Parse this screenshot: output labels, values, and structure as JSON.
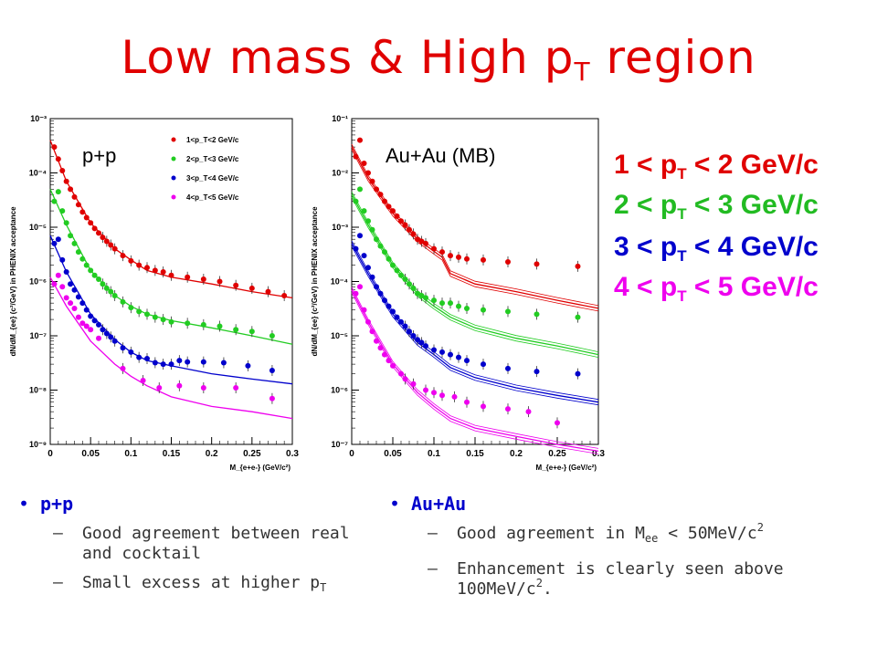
{
  "slide": {
    "title_main": "Low mass & High p",
    "title_sub": "T",
    "title_end": " region"
  },
  "legend_big": [
    {
      "pre": "1 < p",
      "sub": "T",
      "post": " < 2 GeV/c",
      "color": "#e00000"
    },
    {
      "pre": "2 < p",
      "sub": "T",
      "post": " < 3 GeV/c",
      "color": "#22bb22"
    },
    {
      "pre": "3 < p",
      "sub": "T",
      "post": " < 4 GeV/c",
      "color": "#0000cc"
    },
    {
      "pre": "4 < p",
      "sub": "T",
      "post": " < 5 GeV/c",
      "color": "#ee00ee"
    }
  ],
  "bullets": {
    "pp": {
      "head": "p+p",
      "items": [
        {
          "text": "Good agreement between real and cocktail"
        },
        {
          "text": "Small excess at higher p",
          "sub": "T"
        }
      ]
    },
    "auau": {
      "head": "Au+Au",
      "item1": {
        "pre": " Good agreement in M",
        "sub": "ee",
        "mid": " < 50MeV/c",
        "sup": "2"
      },
      "item2": {
        "pre": " Enhancement is clearly seen above 100MeV/c",
        "sup": "2",
        "post": "."
      }
    }
  },
  "chart_data": [
    {
      "type": "scatter",
      "label": "p+p",
      "xlabel": "M_{e+e-} (GeV/c²)",
      "ylabel": "dN/dM_{ee} (c²/GeV) in PHENIX acceptance",
      "xlim": [
        0,
        0.3
      ],
      "ylim": [
        1e-09,
        0.001
      ],
      "y_scale": "log",
      "x_ticks": [
        "0",
        "0.05",
        "0.1",
        "0.15",
        "0.2",
        "0.25",
        "0.3"
      ],
      "y_ticks": [
        "10⁻⁹",
        "10⁻⁸",
        "10⁻⁷",
        "10⁻⁶",
        "10⁻⁵",
        "10⁻⁴",
        "10⁻³"
      ],
      "legend": [
        "1<p_T<2 GeV/c",
        "2<p_T<3 GeV/c",
        "3<p_T<4 GeV/c",
        "4<p_T<5 GeV/c"
      ],
      "series": [
        {
          "color": "#e00000",
          "x": [
            0.005,
            0.01,
            0.015,
            0.02,
            0.025,
            0.03,
            0.035,
            0.04,
            0.045,
            0.05,
            0.055,
            0.06,
            0.065,
            0.07,
            0.075,
            0.08,
            0.09,
            0.1,
            0.11,
            0.12,
            0.13,
            0.14,
            0.15,
            0.17,
            0.19,
            0.21,
            0.23,
            0.25,
            0.27,
            0.29
          ],
          "y": [
            0.0003,
            0.00018,
            0.00011,
            7e-05,
            5e-05,
            3.6e-05,
            2.6e-05,
            1.9e-05,
            1.5e-05,
            1.2e-05,
            9.5e-06,
            7.8e-06,
            6.5e-06,
            5.5e-06,
            4.7e-06,
            4e-06,
            3e-06,
            2.4e-06,
            2e-06,
            1.8e-06,
            1.6e-06,
            1.5e-06,
            1.3e-06,
            1.2e-06,
            1.1e-06,
            1e-06,
            8.5e-07,
            7.5e-07,
            6.5e-07,
            5.5e-07
          ],
          "curve": [
            [
              0,
              0.0004
            ],
            [
              0.02,
              7e-05
            ],
            [
              0.05,
              1.2e-05
            ],
            [
              0.08,
              4e-06
            ],
            [
              0.1,
              2.5e-06
            ],
            [
              0.12,
              1.6e-06
            ],
            [
              0.15,
              1.2e-06
            ],
            [
              0.2,
              9e-07
            ],
            [
              0.25,
              6.5e-07
            ],
            [
              0.3,
              5e-07
            ]
          ]
        },
        {
          "color": "#22cc22",
          "x": [
            0.005,
            0.01,
            0.015,
            0.02,
            0.025,
            0.03,
            0.035,
            0.04,
            0.045,
            0.05,
            0.055,
            0.06,
            0.065,
            0.07,
            0.075,
            0.08,
            0.09,
            0.1,
            0.11,
            0.12,
            0.13,
            0.14,
            0.15,
            0.17,
            0.19,
            0.21,
            0.23,
            0.25,
            0.275
          ],
          "y": [
            3e-05,
            4.5e-05,
            2e-05,
            1.2e-05,
            7e-06,
            5e-06,
            3.5e-06,
            2.6e-06,
            2e-06,
            1.6e-06,
            1.3e-06,
            1.1e-06,
            9e-07,
            7.5e-07,
            6.5e-07,
            5.5e-07,
            4.2e-07,
            3.3e-07,
            2.8e-07,
            2.5e-07,
            2.2e-07,
            2e-07,
            1.8e-07,
            1.7e-07,
            1.6e-07,
            1.5e-07,
            1.3e-07,
            1.2e-07,
            1e-07
          ],
          "curve": [
            [
              0,
              5e-05
            ],
            [
              0.02,
              1.1e-05
            ],
            [
              0.05,
              1.6e-06
            ],
            [
              0.08,
              5.5e-07
            ],
            [
              0.1,
              3.5e-07
            ],
            [
              0.12,
              2.5e-07
            ],
            [
              0.15,
              1.9e-07
            ],
            [
              0.2,
              1.4e-07
            ],
            [
              0.25,
              1e-07
            ],
            [
              0.3,
              7e-08
            ]
          ]
        },
        {
          "color": "#0000cc",
          "x": [
            0.005,
            0.01,
            0.015,
            0.02,
            0.025,
            0.03,
            0.035,
            0.04,
            0.045,
            0.05,
            0.055,
            0.06,
            0.065,
            0.07,
            0.075,
            0.08,
            0.09,
            0.1,
            0.11,
            0.12,
            0.13,
            0.14,
            0.15,
            0.16,
            0.17,
            0.19,
            0.215,
            0.245,
            0.275
          ],
          "y": [
            5e-06,
            6e-06,
            2.5e-06,
            1.5e-06,
            9e-07,
            7e-07,
            5.2e-07,
            4e-07,
            3e-07,
            2.3e-07,
            1.9e-07,
            1.6e-07,
            1.3e-07,
            1.1e-07,
            9.5e-08,
            8e-08,
            6e-08,
            5e-08,
            4e-08,
            3.8e-08,
            3.2e-08,
            3e-08,
            3e-08,
            3.5e-08,
            3.3e-08,
            3.3e-08,
            3.2e-08,
            2.8e-08,
            2.3e-08
          ],
          "curve": [
            [
              0,
              7e-06
            ],
            [
              0.02,
              1.5e-06
            ],
            [
              0.05,
              2.5e-07
            ],
            [
              0.08,
              8.5e-08
            ],
            [
              0.1,
              5e-08
            ],
            [
              0.12,
              3.5e-08
            ],
            [
              0.15,
              2.8e-08
            ],
            [
              0.2,
              2e-08
            ],
            [
              0.25,
              1.6e-08
            ],
            [
              0.3,
              1.3e-08
            ]
          ]
        },
        {
          "color": "#ee00ee",
          "x": [
            0.005,
            0.01,
            0.015,
            0.02,
            0.025,
            0.03,
            0.035,
            0.04,
            0.045,
            0.05,
            0.06,
            0.09,
            0.115,
            0.135,
            0.16,
            0.19,
            0.23,
            0.275
          ],
          "y": [
            9e-07,
            1.3e-06,
            8e-07,
            5e-07,
            4e-07,
            3.2e-07,
            2.2e-07,
            1.7e-07,
            1.5e-07,
            1.3e-07,
            9e-08,
            2.5e-08,
            1.5e-08,
            1.1e-08,
            1.2e-08,
            1.1e-08,
            1.1e-08,
            7e-09
          ],
          "curve": [
            [
              0,
              1.2e-06
            ],
            [
              0.02,
              3.5e-07
            ],
            [
              0.05,
              8e-08
            ],
            [
              0.08,
              3e-08
            ],
            [
              0.1,
              1.8e-08
            ],
            [
              0.12,
              1.2e-08
            ],
            [
              0.15,
              7.5e-09
            ],
            [
              0.2,
              5e-09
            ],
            [
              0.25,
              4e-09
            ],
            [
              0.3,
              3e-09
            ]
          ]
        }
      ]
    },
    {
      "type": "scatter",
      "label": "Au+Au (MB)",
      "xlabel": "M_{e+e-} (GeV/c²)",
      "ylabel": "dN/dM_{ee} (c²/GeV) in PHENIX acceptance",
      "xlim": [
        0,
        0.3
      ],
      "ylim": [
        1e-07,
        0.1
      ],
      "y_scale": "log",
      "x_ticks": [
        "0",
        "0.05",
        "0.1",
        "0.15",
        "0.2",
        "0.25",
        "0.3"
      ],
      "y_ticks": [
        "10⁻⁷",
        "10⁻⁶",
        "10⁻⁵",
        "10⁻⁴",
        "10⁻³",
        "10⁻²",
        "10⁻¹"
      ],
      "series": [
        {
          "color": "#e00000",
          "x": [
            0.005,
            0.01,
            0.015,
            0.02,
            0.025,
            0.03,
            0.035,
            0.04,
            0.045,
            0.05,
            0.055,
            0.06,
            0.065,
            0.07,
            0.075,
            0.08,
            0.085,
            0.09,
            0.1,
            0.11,
            0.12,
            0.13,
            0.14,
            0.16,
            0.19,
            0.225,
            0.275
          ],
          "y": [
            0.02,
            0.04,
            0.015,
            0.01,
            0.007,
            0.005,
            0.004,
            0.003,
            0.0024,
            0.002,
            0.0016,
            0.0013,
            0.0011,
            0.0009,
            0.00075,
            0.0006,
            0.00055,
            0.0005,
            0.0004,
            0.00035,
            0.0003,
            0.00028,
            0.00026,
            0.00025,
            0.00023,
            0.00021,
            0.00019
          ],
          "curve": [
            [
              0,
              0.03
            ],
            [
              0.02,
              0.008
            ],
            [
              0.05,
              0.0018
            ],
            [
              0.08,
              0.0006
            ],
            [
              0.1,
              0.00036
            ],
            [
              0.11,
              0.00028
            ],
            [
              0.12,
              0.00014
            ],
            [
              0.15,
              9e-05
            ],
            [
              0.2,
              6.5e-05
            ],
            [
              0.25,
              4.5e-05
            ],
            [
              0.3,
              3.2e-05
            ]
          ]
        },
        {
          "color": "#22cc22",
          "x": [
            0.005,
            0.01,
            0.015,
            0.02,
            0.025,
            0.03,
            0.035,
            0.04,
            0.045,
            0.05,
            0.055,
            0.06,
            0.065,
            0.07,
            0.075,
            0.08,
            0.085,
            0.09,
            0.1,
            0.11,
            0.12,
            0.13,
            0.14,
            0.16,
            0.19,
            0.225,
            0.275
          ],
          "y": [
            0.003,
            0.005,
            0.002,
            0.0013,
            0.0009,
            0.0006,
            0.00045,
            0.00035,
            0.00026,
            0.0002,
            0.00016,
            0.00013,
            0.00011,
            9e-05,
            7.5e-05,
            6e-05,
            5.5e-05,
            5e-05,
            4.5e-05,
            4e-05,
            4e-05,
            3.5e-05,
            3.2e-05,
            3e-05,
            2.8e-05,
            2.5e-05,
            2.2e-05
          ],
          "curve": [
            [
              0,
              0.004
            ],
            [
              0.02,
              0.0011
            ],
            [
              0.05,
              0.0002
            ],
            [
              0.08,
              6e-05
            ],
            [
              0.1,
              3.5e-05
            ],
            [
              0.12,
              2.2e-05
            ],
            [
              0.15,
              1.4e-05
            ],
            [
              0.2,
              9e-06
            ],
            [
              0.25,
              6.5e-06
            ],
            [
              0.3,
              4.5e-06
            ]
          ]
        },
        {
          "color": "#0000cc",
          "x": [
            0.005,
            0.01,
            0.015,
            0.02,
            0.025,
            0.03,
            0.035,
            0.04,
            0.045,
            0.05,
            0.055,
            0.06,
            0.065,
            0.07,
            0.075,
            0.08,
            0.085,
            0.09,
            0.1,
            0.11,
            0.12,
            0.13,
            0.14,
            0.16,
            0.19,
            0.225,
            0.275
          ],
          "y": [
            0.0004,
            0.0007,
            0.0003,
            0.00018,
            0.00012,
            8e-05,
            6e-05,
            4.5e-05,
            3.5e-05,
            2.8e-05,
            2.2e-05,
            1.8e-05,
            1.5e-05,
            1.2e-05,
            1e-05,
            8.5e-06,
            7.5e-06,
            6.5e-06,
            5.5e-06,
            5e-06,
            4.5e-06,
            4e-06,
            3.5e-06,
            3e-06,
            2.5e-06,
            2.2e-06,
            2e-06
          ],
          "curve": [
            [
              0,
              0.0005
            ],
            [
              0.02,
              0.00014
            ],
            [
              0.05,
              2.5e-05
            ],
            [
              0.08,
              7.5e-06
            ],
            [
              0.1,
              4.5e-06
            ],
            [
              0.12,
              2.6e-06
            ],
            [
              0.15,
              1.7e-06
            ],
            [
              0.2,
              1.1e-06
            ],
            [
              0.25,
              8e-07
            ],
            [
              0.3,
              6e-07
            ]
          ]
        },
        {
          "color": "#ee00ee",
          "x": [
            0.005,
            0.01,
            0.015,
            0.02,
            0.025,
            0.03,
            0.035,
            0.04,
            0.045,
            0.05,
            0.06,
            0.065,
            0.075,
            0.09,
            0.1,
            0.11,
            0.125,
            0.14,
            0.16,
            0.19,
            0.215,
            0.25
          ],
          "y": [
            6e-05,
            8e-05,
            3e-05,
            1.8e-05,
            1.2e-05,
            8e-06,
            6e-06,
            4.5e-06,
            3.5e-06,
            2.8e-06,
            2e-06,
            1.6e-06,
            1.3e-06,
            1e-06,
            9e-07,
            8e-07,
            7.5e-07,
            6e-07,
            5e-07,
            4.5e-07,
            4e-07,
            2.5e-07
          ],
          "curve": [
            [
              0,
              7e-05
            ],
            [
              0.02,
              1.8e-05
            ],
            [
              0.05,
              3e-06
            ],
            [
              0.08,
              9e-07
            ],
            [
              0.1,
              5e-07
            ],
            [
              0.12,
              3e-07
            ],
            [
              0.15,
              2e-07
            ],
            [
              0.2,
              1.4e-07
            ],
            [
              0.25,
              1e-07
            ],
            [
              0.3,
              7.5e-08
            ]
          ]
        }
      ]
    }
  ]
}
